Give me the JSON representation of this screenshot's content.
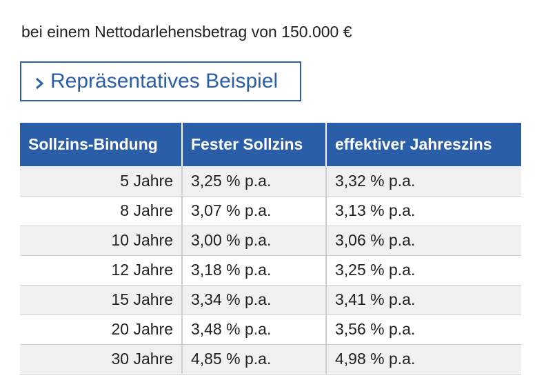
{
  "intro": {
    "text": "bei einem Nettodarlehensbetrag von 150.000 €"
  },
  "example": {
    "label": "Repräsentatives Beispiel",
    "icon": "chevron-right-icon",
    "color": "#2a5ea8"
  },
  "table": {
    "headers": [
      "Sollzins-Bindung",
      "Fester Sollzins",
      "effektiver Jahreszins"
    ],
    "rows": [
      [
        "5 Jahre",
        "3,25 % p.a.",
        "3,32 % p.a."
      ],
      [
        "8 Jahre",
        "3,07 % p.a.",
        "3,13 % p.a."
      ],
      [
        "10 Jahre",
        "3,00 % p.a.",
        "3,06 % p.a."
      ],
      [
        "12 Jahre",
        "3,18 % p.a.",
        "3,25 % p.a."
      ],
      [
        "15 Jahre",
        "3,34 % p.a.",
        "3,41 % p.a."
      ],
      [
        "20 Jahre",
        "3,48 % p.a.",
        "3,56 % p.a."
      ],
      [
        "30 Jahre",
        "4,85 % p.a.",
        "4,98 % p.a."
      ]
    ],
    "header_color": "#2a5ea8",
    "stripe_color": "#f0f0f0"
  }
}
